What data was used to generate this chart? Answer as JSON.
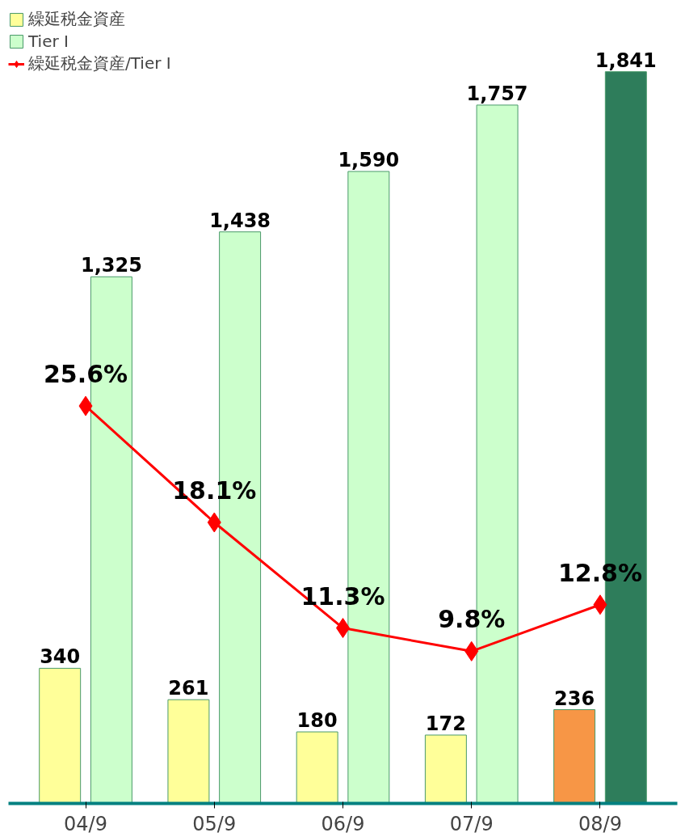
{
  "chart_data": {
    "type": "bar",
    "categories": [
      "04/9",
      "05/9",
      "06/9",
      "07/9",
      "08/9"
    ],
    "ylim": [
      0,
      2000
    ],
    "y2lim": [
      0,
      51.2
    ],
    "tick_labels": "x",
    "grid": false,
    "legend": "top left",
    "series": [
      {
        "name": "繰延税金資産",
        "color": "#ffff99",
        "colors": [
          "#ffff99",
          "#ffff99",
          "#ffff99",
          "#ffff99",
          "#f79646"
        ],
        "values": [
          340,
          261,
          180,
          172,
          236
        ],
        "value_labels": [
          "340",
          "261",
          "180",
          "172",
          "236"
        ]
      },
      {
        "name": "Tier Ⅰ",
        "color": "#ccffcc",
        "colors": [
          "#ccffcc",
          "#ccffcc",
          "#ccffcc",
          "#ccffcc",
          "#2e7d5b"
        ],
        "values": [
          1325,
          1438,
          1590,
          1757,
          1841
        ],
        "value_labels": [
          "1,325",
          "1,438",
          "1,590",
          "1,757",
          "1,841"
        ]
      },
      {
        "name": "繰延税金資産/Tier Ⅰ",
        "type": "line",
        "axis": "y2",
        "color": "#ff0000",
        "marker": "diamond",
        "values": [
          25.6,
          18.1,
          11.3,
          9.8,
          12.8
        ],
        "value_labels": [
          "25.6%",
          "18.1%",
          "11.3%",
          "9.8%",
          "12.8%"
        ]
      }
    ]
  }
}
